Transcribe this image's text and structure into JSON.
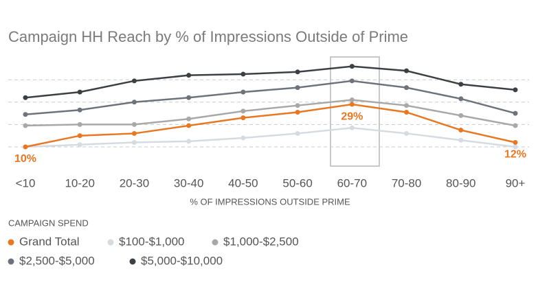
{
  "chart_data": {
    "type": "line",
    "title": "Campaign HH Reach by % of Impressions Outside of Prime",
    "x_label": "% OF IMPRESSIONS OUTSIDE PRIME",
    "legend_title": "CAMPAIGN SPEND",
    "categories": [
      "<10",
      "10-20",
      "20-30",
      "30-40",
      "40-50",
      "50-60",
      "60-70",
      "70-80",
      "80-90",
      "90+"
    ],
    "ylim": [
      0,
      50
    ],
    "yticks": [
      10,
      20,
      30,
      40
    ],
    "grid": true,
    "legend": "bottom",
    "series": [
      {
        "name": "Grand Total",
        "color": "#e87722",
        "values": [
          10,
          15,
          16,
          19.5,
          23,
          25.5,
          29,
          25.5,
          17.5,
          12
        ],
        "value_labels": [
          "10%",
          null,
          null,
          null,
          null,
          null,
          "29%",
          null,
          null,
          "12%"
        ]
      },
      {
        "name": "$100-$1,000",
        "color": "#d5dbe0",
        "values": [
          10,
          11,
          12,
          12.5,
          14,
          16,
          18.5,
          16,
          13,
          10
        ]
      },
      {
        "name": "$1,000-$2,500",
        "color": "#a8a8aa",
        "values": [
          19.5,
          20,
          20,
          22.5,
          26,
          28.5,
          31,
          28.5,
          24,
          19.5
        ]
      },
      {
        "name": "$2,500-$5,000",
        "color": "#6d737a",
        "values": [
          24.5,
          26.5,
          30,
          32,
          34.5,
          36.5,
          39.5,
          36.5,
          31.5,
          25
        ]
      },
      {
        "name": "$5,000-$10,000",
        "color": "#3c3f44",
        "values": [
          32,
          34.5,
          39.5,
          42,
          42.5,
          43.5,
          46,
          44,
          38,
          35.5
        ]
      }
    ]
  }
}
